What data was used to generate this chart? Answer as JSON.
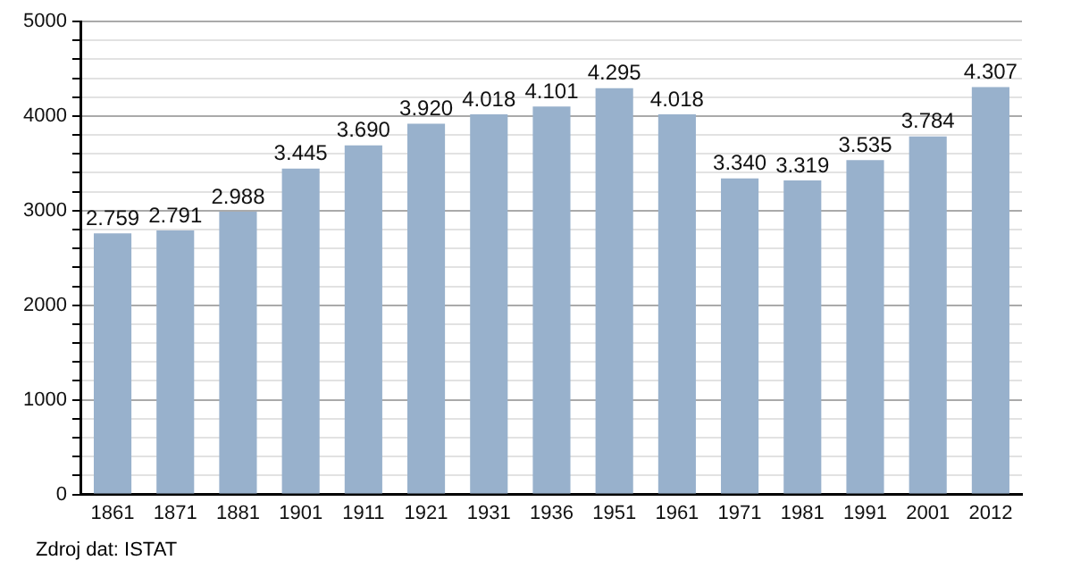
{
  "chart_data": {
    "type": "bar",
    "categories": [
      "1861",
      "1871",
      "1881",
      "1901",
      "1911",
      "1921",
      "1931",
      "1936",
      "1951",
      "1961",
      "1971",
      "1981",
      "1991",
      "2001",
      "2012"
    ],
    "values": [
      2759,
      2791,
      2988,
      3445,
      3690,
      3920,
      4018,
      4101,
      4295,
      4018,
      3340,
      3319,
      3535,
      3784,
      4307
    ],
    "value_labels": [
      "2.759",
      "2.791",
      "2.988",
      "3.445",
      "3.690",
      "3.920",
      "4.018",
      "4.101",
      "4.295",
      "4.018",
      "3.340",
      "3.319",
      "3.535",
      "3.784",
      "4.307"
    ],
    "color": "#98b1cc",
    "ylim": [
      0,
      5000
    ],
    "yticks": [
      0,
      {
        "value": 200,
        "label": null
      },
      {
        "value": 400,
        "label": null
      },
      {
        "value": 600,
        "label": null
      },
      {
        "value": 800,
        "label": null
      },
      1000,
      {
        "value": 1200,
        "label": null
      },
      {
        "value": 1400,
        "label": null
      },
      {
        "value": 1600,
        "label": null
      },
      {
        "value": 1800,
        "label": null
      },
      2000,
      {
        "value": 2200,
        "label": null
      },
      {
        "value": 2400,
        "label": null
      },
      {
        "value": 2600,
        "label": null
      },
      {
        "value": 2800,
        "label": null
      },
      3000,
      {
        "value": 3200,
        "label": null
      },
      {
        "value": 3400,
        "label": null
      },
      {
        "value": 3600,
        "label": null
      },
      {
        "value": 3800,
        "label": null
      },
      4000,
      {
        "value": 4200,
        "label": null
      },
      {
        "value": 4400,
        "label": null
      },
      {
        "value": 4600,
        "label": null
      },
      {
        "value": 4800,
        "label": null
      },
      5000
    ],
    "grid": "y",
    "legend": false,
    "annotations": [
      "Zdroj dat: ISTAT"
    ]
  }
}
